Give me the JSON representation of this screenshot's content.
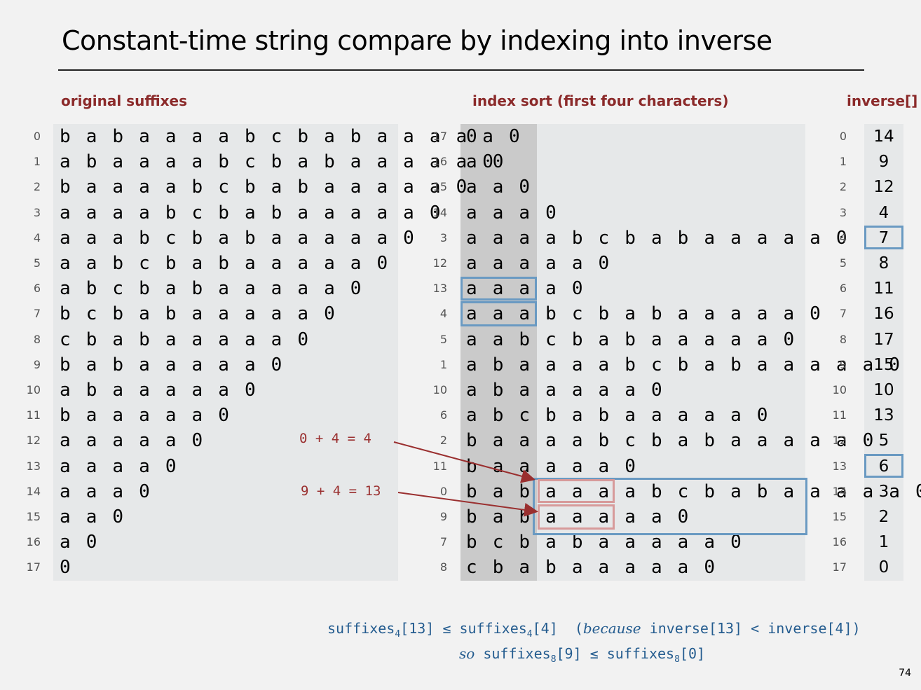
{
  "title": "Constant-time string compare by indexing into inverse",
  "headers": {
    "original": "original suffixes",
    "index_sort": "index sort (first four characters)",
    "inverse": "inverse[]"
  },
  "original_rows": [
    {
      "i": "0",
      "s": "babaaaabcbabaaaaa0"
    },
    {
      "i": "1",
      "s": "abaaaabcbabaaaaa0"
    },
    {
      "i": "2",
      "s": "baaaabcbabaaaaa0"
    },
    {
      "i": "3",
      "s": "aaaabcbabaaaaa0"
    },
    {
      "i": "4",
      "s": "aaabcbabaaaaa0"
    },
    {
      "i": "5",
      "s": "aabcbabaaaaa0"
    },
    {
      "i": "6",
      "s": "abcbabaaaaa0"
    },
    {
      "i": "7",
      "s": "bcbabaaaaa0"
    },
    {
      "i": "8",
      "s": "cbabaaaaa0"
    },
    {
      "i": "9",
      "s": "babaaaaa0"
    },
    {
      "i": "10",
      "s": "abaaaaa0"
    },
    {
      "i": "11",
      "s": "baaaaa0"
    },
    {
      "i": "12",
      "s": "aaaaa0"
    },
    {
      "i": "13",
      "s": "aaaa0"
    },
    {
      "i": "14",
      "s": "aaa0"
    },
    {
      "i": "15",
      "s": "aa0"
    },
    {
      "i": "16",
      "s": "a0"
    },
    {
      "i": "17",
      "s": "0"
    }
  ],
  "sorted_rows": [
    {
      "i": "17",
      "s": "0"
    },
    {
      "i": "16",
      "s": "a0"
    },
    {
      "i": "15",
      "s": "aa0"
    },
    {
      "i": "14",
      "s": "aaa0"
    },
    {
      "i": "3",
      "s": "aaaabcbabaaaaa0"
    },
    {
      "i": "12",
      "s": "aaaaa0"
    },
    {
      "i": "13",
      "s": "aaaa0"
    },
    {
      "i": "4",
      "s": "aaabcbabaaaaa0"
    },
    {
      "i": "5",
      "s": "aabcbabaaaaa0"
    },
    {
      "i": "1",
      "s": "abaaaabcbabaaaaa0"
    },
    {
      "i": "10",
      "s": "abaaaaa0"
    },
    {
      "i": "6",
      "s": "abcbabaaaaa0"
    },
    {
      "i": "2",
      "s": "baaaabcbabaaaaa0"
    },
    {
      "i": "11",
      "s": "baaaaa0"
    },
    {
      "i": "0",
      "s": "babaaaabcbabaaaaa0"
    },
    {
      "i": "9",
      "s": "babaaaaa0"
    },
    {
      "i": "7",
      "s": "bcbabaaaaa0"
    },
    {
      "i": "8",
      "s": "cbabaaaaa0"
    }
  ],
  "inverse_rows": [
    {
      "i": "0",
      "v": "14"
    },
    {
      "i": "1",
      "v": "9"
    },
    {
      "i": "2",
      "v": "12"
    },
    {
      "i": "3",
      "v": "4"
    },
    {
      "i": "4",
      "v": "7"
    },
    {
      "i": "5",
      "v": "8"
    },
    {
      "i": "6",
      "v": "11"
    },
    {
      "i": "7",
      "v": "16"
    },
    {
      "i": "8",
      "v": "17"
    },
    {
      "i": "9",
      "v": "15"
    },
    {
      "i": "10",
      "v": "10"
    },
    {
      "i": "11",
      "v": "13"
    },
    {
      "i": "12",
      "v": "5"
    },
    {
      "i": "13",
      "v": "6"
    },
    {
      "i": "14",
      "v": "3"
    },
    {
      "i": "15",
      "v": "2"
    },
    {
      "i": "16",
      "v": "1"
    },
    {
      "i": "17",
      "v": "0"
    }
  ],
  "annotations": {
    "eq1": "0 + 4 = 4",
    "eq2": "9 + 4 = 13"
  },
  "footer": {
    "line1_a": "suffixes",
    "line1_sub1": "4",
    "line1_b": "[13] ≤ suffixes",
    "line1_sub2": "4",
    "line1_c": "[4]  (",
    "line1_because": "because",
    "line1_d": " inverse[13] < inverse[4])",
    "line2_so": "so",
    "line2_a": " suffixes",
    "line2_sub1": "8",
    "line2_b": "[9] ≤ suffixes",
    "line2_sub2": "8",
    "line2_c": "[0]"
  },
  "page_number": "74",
  "colors": {
    "header_red": "#8b2a2a",
    "highlight_blue": "#6a9ac2",
    "highlight_pink": "#d79a9a",
    "arrow_red": "#9a2f2f",
    "footer_blue": "#245c8f"
  }
}
